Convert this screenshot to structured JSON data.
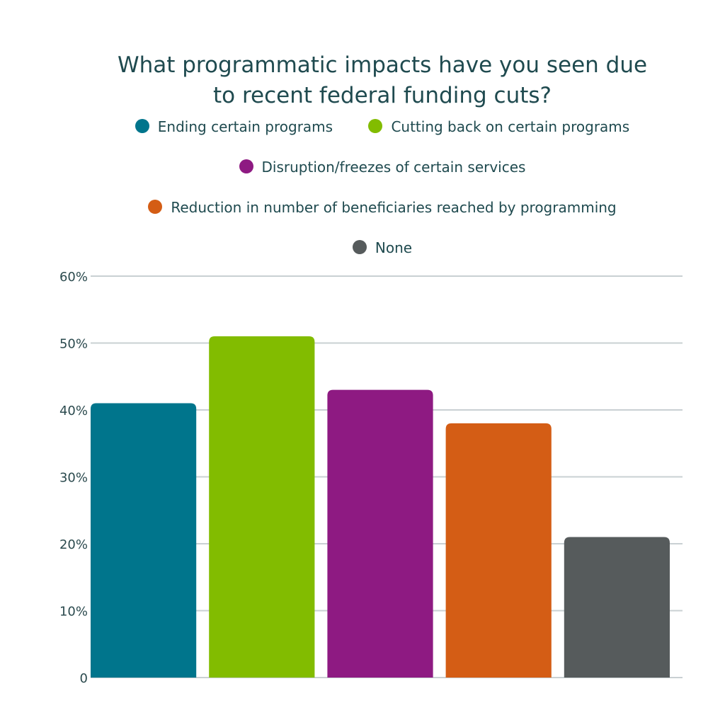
{
  "chart_data": {
    "type": "bar",
    "title_lines": [
      "What programmatic impacts have you seen due",
      "to recent federal funding cuts?"
    ],
    "categories": [
      "Ending certain programs",
      "Cutting back on certain programs",
      "Disruption/freezes of certain services",
      "Reduction in number of beneficiaries reached by programming",
      "None"
    ],
    "values": [
      41,
      51,
      43,
      38,
      21
    ],
    "colors": [
      "#00758c",
      "#82bc00",
      "#8e1a82",
      "#d45d15",
      "#565b5c"
    ],
    "ylim": [
      0,
      60
    ],
    "yticks": [
      {
        "value": 0,
        "label": "0"
      },
      {
        "value": 10,
        "label": "10%"
      },
      {
        "value": 20,
        "label": "20%"
      },
      {
        "value": 30,
        "label": "30%"
      },
      {
        "value": 40,
        "label": "40%"
      },
      {
        "value": 50,
        "label": "50%"
      },
      {
        "value": 60,
        "label": "60%"
      }
    ],
    "grid": true,
    "legend_position": "top",
    "xlabel": "",
    "ylabel": ""
  }
}
